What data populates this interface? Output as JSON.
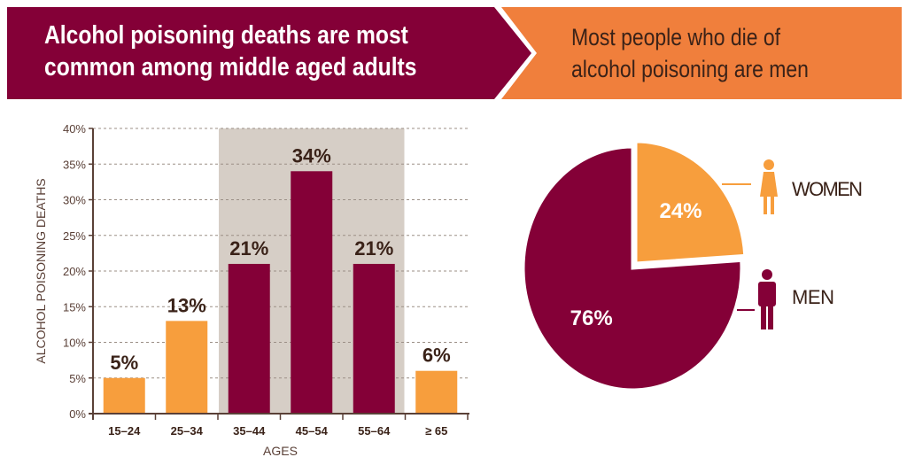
{
  "header": {
    "left_title": "Alcohol poisoning deaths are most common among middle aged adults",
    "right_title": "Most people who die of alcohol poisoning are men"
  },
  "colors": {
    "maroon": "#840037",
    "orange_banner": "#F07F3C",
    "orange_bar": "#F79E3D",
    "highlight_band": "#D6CEC6",
    "text_dark": "#3a2218"
  },
  "chart_data": [
    {
      "type": "bar",
      "title": "Alcohol poisoning deaths are most common among middle aged adults",
      "xlabel": "AGES",
      "ylabel": "ALCOHOL POISONING DEATHS",
      "categories": [
        "15–24",
        "25–34",
        "35–44",
        "45–54",
        "55–64",
        "≥ 65"
      ],
      "values": [
        5,
        13,
        21,
        34,
        21,
        6
      ],
      "value_labels": [
        "5%",
        "13%",
        "21%",
        "34%",
        "21%",
        "6%"
      ],
      "highlighted": [
        false,
        false,
        true,
        true,
        true,
        false
      ],
      "ylim": [
        0,
        40
      ],
      "yticks": [
        0,
        5,
        10,
        15,
        20,
        25,
        30,
        35,
        40
      ],
      "ytick_labels": [
        "0%",
        "5%",
        "10%",
        "15%",
        "20%",
        "25%",
        "30%",
        "35%",
        "40%"
      ],
      "grid": true
    },
    {
      "type": "pie",
      "title": "Most people who die of alcohol poisoning are men",
      "slices": [
        {
          "label": "WOMEN",
          "value": 24,
          "value_label": "24%",
          "icon": "woman-icon",
          "exploded": true
        },
        {
          "label": "MEN",
          "value": 76,
          "value_label": "76%",
          "icon": "man-icon",
          "exploded": false
        }
      ]
    }
  ]
}
